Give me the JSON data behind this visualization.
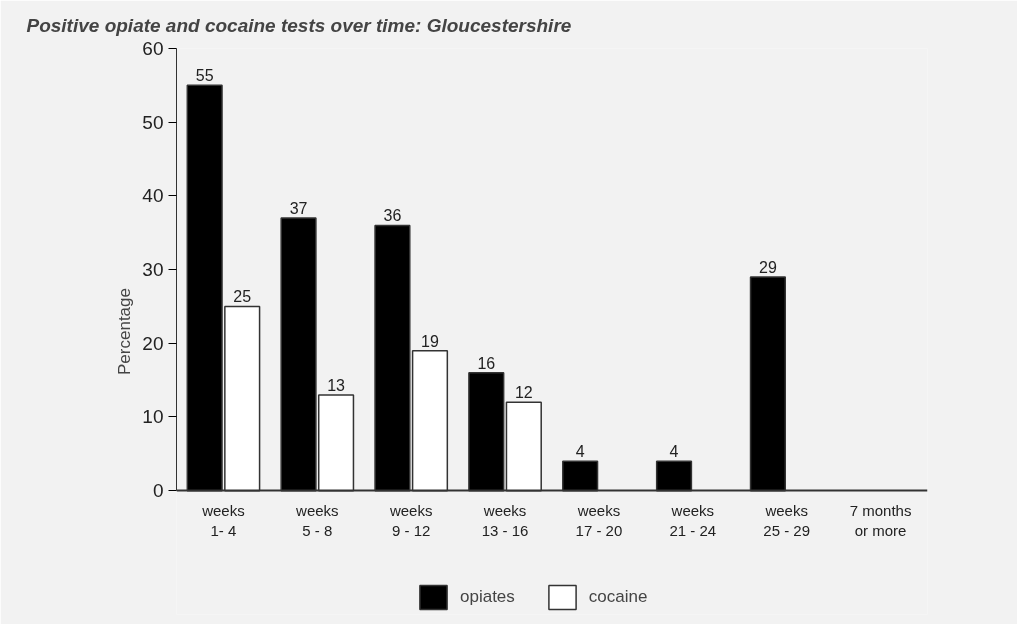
{
  "chart_data": {
    "type": "bar",
    "title": "Positive opiate and cocaine tests over time: Gloucestershire",
    "ylabel": "Percentage",
    "categories": [
      "weeks\n1- 4",
      "weeks\n5 - 8",
      "weeks\n9 - 12",
      "weeks\n13 - 16",
      "weeks\n17 - 20",
      "weeks\n21 - 24",
      "weeks\n25 - 29",
      "7 months\nor more"
    ],
    "series": [
      {
        "name": "opiates",
        "color": "#000000",
        "values": [
          55,
          37,
          36,
          16,
          4,
          4,
          29,
          null
        ]
      },
      {
        "name": "cocaine",
        "color": "#ffffff",
        "values": [
          25,
          13,
          19,
          12,
          null,
          null,
          null,
          null
        ]
      }
    ],
    "ylim": [
      0,
      60
    ],
    "yticks": [
      0,
      10,
      20,
      30,
      40,
      50,
      60
    ],
    "data_labels": true,
    "grid": false,
    "legend": "bottom"
  }
}
